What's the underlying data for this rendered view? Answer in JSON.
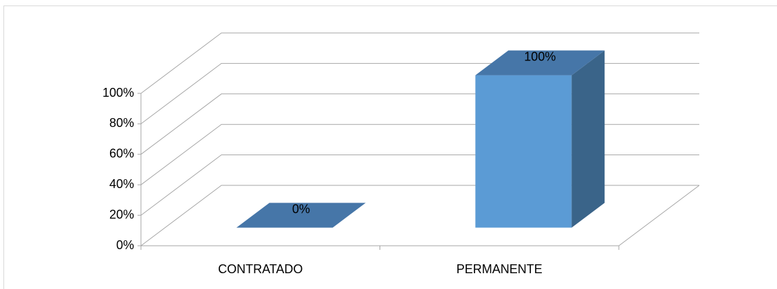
{
  "chart_data": {
    "type": "bar3d",
    "categories": [
      "CONTRATADO",
      "PERMANENTE"
    ],
    "values": [
      0,
      100
    ],
    "value_labels": [
      "0%",
      "100%"
    ],
    "color": "#5b9bd5",
    "ylim": [
      0,
      100
    ],
    "yticks": [
      {
        "value": 0,
        "label": "0%"
      },
      {
        "value": 20,
        "label": "20%"
      },
      {
        "value": 40,
        "label": "40%"
      },
      {
        "value": 60,
        "label": "60%"
      },
      {
        "value": 80,
        "label": "80%"
      },
      {
        "value": 100,
        "label": "100%"
      }
    ],
    "grid": true
  }
}
